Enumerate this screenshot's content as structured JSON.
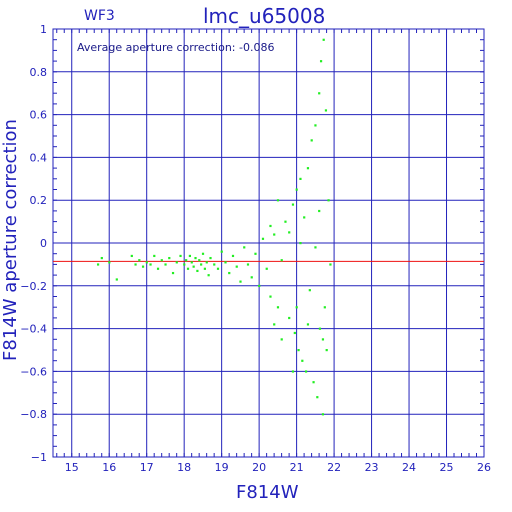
{
  "chart_data": {
    "type": "scatter",
    "panel_label": "WF3",
    "title": "lmc_u65008",
    "annotation": "Average aperture correction: -0.086",
    "xlabel": "F814W",
    "ylabel": "F814W aperture correction",
    "xlim": [
      14.5,
      26
    ],
    "ylim": [
      -1,
      1
    ],
    "xticks": [
      15,
      16,
      17,
      18,
      19,
      20,
      21,
      22,
      23,
      24,
      25,
      26
    ],
    "yticks": [
      -1,
      -0.8,
      -0.6,
      -0.4,
      -0.2,
      0,
      0.2,
      0.4,
      0.6,
      0.8,
      1
    ],
    "ytick_labels": [
      "−1",
      "−0.8",
      "−0.6",
      "−0.4",
      "−0.2",
      "0",
      "0.2",
      "0.4",
      "0.6",
      "0.8",
      "1"
    ],
    "grid": true,
    "reference_line": {
      "y": -0.086,
      "color": "#ee1111"
    },
    "point_color": "#22ee22",
    "frame_color": "#2222bb",
    "points": [
      [
        15.7,
        -0.1
      ],
      [
        15.8,
        -0.07
      ],
      [
        16.0,
        -0.09
      ],
      [
        16.2,
        -0.17
      ],
      [
        16.6,
        -0.06
      ],
      [
        16.7,
        -0.1
      ],
      [
        16.8,
        -0.08
      ],
      [
        16.9,
        -0.11
      ],
      [
        17.0,
        -0.09
      ],
      [
        17.1,
        -0.1
      ],
      [
        17.2,
        -0.06
      ],
      [
        17.3,
        -0.12
      ],
      [
        17.4,
        -0.08
      ],
      [
        17.5,
        -0.1
      ],
      [
        17.6,
        -0.07
      ],
      [
        17.7,
        -0.14
      ],
      [
        17.8,
        -0.09
      ],
      [
        17.9,
        -0.06
      ],
      [
        18.0,
        -0.1
      ],
      [
        18.05,
        -0.08
      ],
      [
        18.1,
        -0.12
      ],
      [
        18.15,
        -0.06
      ],
      [
        18.2,
        -0.09
      ],
      [
        18.25,
        -0.11
      ],
      [
        18.3,
        -0.07
      ],
      [
        18.35,
        -0.13
      ],
      [
        18.4,
        -0.08
      ],
      [
        18.45,
        -0.1
      ],
      [
        18.5,
        -0.05
      ],
      [
        18.55,
        -0.12
      ],
      [
        18.6,
        -0.09
      ],
      [
        18.65,
        -0.15
      ],
      [
        18.7,
        -0.07
      ],
      [
        18.8,
        -0.1
      ],
      [
        18.9,
        -0.12
      ],
      [
        19.0,
        -0.04
      ],
      [
        19.1,
        -0.09
      ],
      [
        19.2,
        -0.14
      ],
      [
        19.3,
        -0.06
      ],
      [
        19.4,
        -0.11
      ],
      [
        19.5,
        -0.18
      ],
      [
        19.6,
        -0.02
      ],
      [
        19.7,
        -0.1
      ],
      [
        19.8,
        -0.16
      ],
      [
        19.9,
        -0.05
      ],
      [
        20.0,
        -0.2
      ],
      [
        20.1,
        0.02
      ],
      [
        20.2,
        -0.12
      ],
      [
        20.3,
        -0.25
      ],
      [
        20.4,
        0.04
      ],
      [
        20.5,
        -0.3
      ],
      [
        20.6,
        -0.08
      ],
      [
        20.7,
        0.1
      ],
      [
        20.8,
        -0.35
      ],
      [
        20.9,
        0.18
      ],
      [
        20.95,
        -0.42
      ],
      [
        21.0,
        0.25
      ],
      [
        21.05,
        -0.5
      ],
      [
        21.1,
        0.3
      ],
      [
        21.15,
        -0.55
      ],
      [
        21.2,
        0.12
      ],
      [
        21.25,
        -0.6
      ],
      [
        21.3,
        0.35
      ],
      [
        21.35,
        -0.22
      ],
      [
        21.4,
        0.48
      ],
      [
        21.45,
        -0.65
      ],
      [
        21.5,
        0.55
      ],
      [
        21.55,
        -0.72
      ],
      [
        21.6,
        0.7
      ],
      [
        21.62,
        -0.4
      ],
      [
        21.65,
        0.85
      ],
      [
        21.7,
        -0.8
      ],
      [
        21.72,
        0.95
      ],
      [
        21.75,
        -0.3
      ],
      [
        21.78,
        0.62
      ],
      [
        21.8,
        -0.5
      ],
      [
        21.85,
        0.2
      ],
      [
        21.9,
        -0.1
      ],
      [
        20.5,
        0.2
      ],
      [
        20.6,
        -0.45
      ],
      [
        20.8,
        0.05
      ],
      [
        20.9,
        -0.6
      ],
      [
        21.0,
        -0.3
      ],
      [
        21.1,
        0.0
      ],
      [
        21.3,
        -0.38
      ],
      [
        21.5,
        -0.02
      ],
      [
        21.6,
        0.15
      ],
      [
        21.7,
        -0.45
      ],
      [
        20.3,
        0.08
      ],
      [
        20.4,
        -0.38
      ]
    ]
  }
}
